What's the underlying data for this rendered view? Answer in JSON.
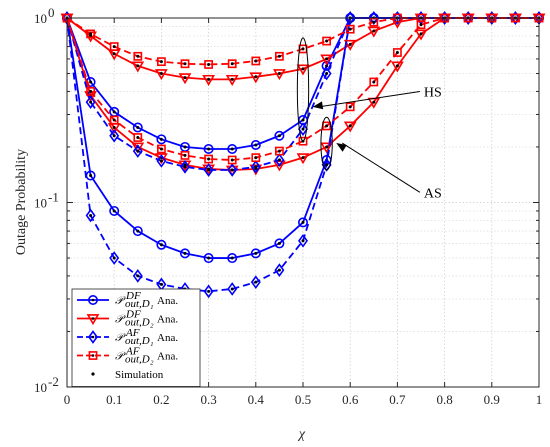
{
  "chart_data": {
    "type": "line",
    "xlabel": "χ",
    "ylabel": "Outage Probability",
    "yscale": "log",
    "xlim": [
      0,
      1
    ],
    "ylim": [
      0.01,
      1
    ],
    "grid": true,
    "legend_position": "bottom-left",
    "x_ticks": [
      0,
      0.1,
      0.2,
      0.3,
      0.4,
      0.5,
      0.6,
      0.7,
      0.8,
      0.9,
      1
    ],
    "x_tick_labels": [
      "0",
      "0.1",
      "0.2",
      "0.3",
      "0.4",
      "0.5",
      "0.6",
      "0.7",
      "0.8",
      "0.9",
      "1"
    ],
    "y_tick_labels": [
      {
        "value": 1,
        "base": "10",
        "exp": "0"
      },
      {
        "value": 0.1,
        "base": "10",
        "exp": "-1"
      },
      {
        "value": 0.01,
        "base": "10",
        "exp": "-2"
      }
    ],
    "x": [
      0,
      0.05,
      0.1,
      0.15,
      0.2,
      0.25,
      0.3,
      0.35,
      0.4,
      0.45,
      0.5,
      0.55,
      0.6,
      0.65,
      0.7,
      0.75,
      0.8,
      0.85,
      0.9,
      0.95,
      1
    ],
    "series": [
      {
        "id": "df-d1-hs",
        "legend": 0,
        "color": "#0000ff",
        "dash": "solid",
        "marker": "circle",
        "values": [
          1,
          0.45,
          0.31,
          0.255,
          0.22,
          0.2,
          0.195,
          0.195,
          0.205,
          0.23,
          0.28,
          0.55,
          1,
          1,
          1,
          1,
          1,
          1,
          1,
          1,
          1
        ]
      },
      {
        "id": "df-d1-as",
        "legend": 0,
        "color": "#0000ff",
        "dash": "solid",
        "marker": "circle",
        "values": [
          1,
          0.14,
          0.09,
          0.07,
          0.059,
          0.053,
          0.05,
          0.05,
          0.053,
          0.06,
          0.078,
          0.17,
          1,
          1,
          1,
          1,
          1,
          1,
          1,
          1,
          1
        ]
      },
      {
        "id": "df-d2-hs",
        "legend": 1,
        "color": "#ff0000",
        "dash": "solid",
        "marker": "triangle-down",
        "values": [
          1,
          0.8,
          0.64,
          0.55,
          0.5,
          0.475,
          0.465,
          0.465,
          0.48,
          0.5,
          0.53,
          0.6,
          0.72,
          0.85,
          0.95,
          1,
          1,
          1,
          1,
          1,
          1
        ]
      },
      {
        "id": "df-d2-as",
        "legend": 1,
        "color": "#ff0000",
        "dash": "solid",
        "marker": "triangle-down",
        "values": [
          1,
          0.38,
          0.255,
          0.2,
          0.175,
          0.16,
          0.152,
          0.15,
          0.152,
          0.16,
          0.175,
          0.2,
          0.26,
          0.35,
          0.55,
          0.82,
          1,
          1,
          1,
          1,
          1
        ]
      },
      {
        "id": "af-d1-hs",
        "legend": 2,
        "color": "#0000ff",
        "dash": "dashed",
        "marker": "diamond",
        "values": [
          1,
          0.35,
          0.23,
          0.19,
          0.168,
          0.156,
          0.15,
          0.15,
          0.156,
          0.17,
          0.25,
          0.5,
          1,
          1,
          1,
          1,
          1,
          1,
          1,
          1,
          1
        ]
      },
      {
        "id": "af-d1-as",
        "legend": 2,
        "color": "#0000ff",
        "dash": "dashed",
        "marker": "diamond",
        "values": [
          1,
          0.085,
          0.05,
          0.04,
          0.036,
          0.034,
          0.033,
          0.034,
          0.037,
          0.043,
          0.062,
          0.16,
          1,
          1,
          1,
          1,
          1,
          1,
          1,
          1,
          1
        ]
      },
      {
        "id": "af-d2-hs",
        "legend": 3,
        "color": "#ff0000",
        "dash": "dashed",
        "marker": "square",
        "values": [
          1,
          0.82,
          0.7,
          0.62,
          0.58,
          0.565,
          0.56,
          0.565,
          0.585,
          0.62,
          0.68,
          0.75,
          0.87,
          0.95,
          1,
          1,
          1,
          1,
          1,
          1,
          1
        ]
      },
      {
        "id": "af-d2-as",
        "legend": 3,
        "color": "#ff0000",
        "dash": "dashed",
        "marker": "square",
        "values": [
          1,
          0.4,
          0.28,
          0.225,
          0.195,
          0.18,
          0.172,
          0.17,
          0.175,
          0.19,
          0.215,
          0.26,
          0.33,
          0.45,
          0.65,
          0.92,
          1,
          1,
          1,
          1,
          1
        ]
      }
    ],
    "legend": [
      {
        "sym": "𝒫",
        "sup": "DF",
        "sub": "out,D₁",
        "suffix": "Ana.",
        "color": "#0000ff",
        "dash": "solid",
        "marker": "circle"
      },
      {
        "sym": "𝒫",
        "sup": "DF",
        "sub": "out,D₂",
        "suffix": "Ana.",
        "color": "#ff0000",
        "dash": "solid",
        "marker": "triangle-down"
      },
      {
        "sym": "𝒫",
        "sup": "AF",
        "sub": "out,D₁",
        "suffix": "Ana.",
        "color": "#0000ff",
        "dash": "dashed",
        "marker": "diamond"
      },
      {
        "sym": "𝒫",
        "sup": "AF",
        "sub": "out,D₂",
        "suffix": "Ana.",
        "color": "#ff0000",
        "dash": "dashed",
        "marker": "square"
      },
      {
        "sym": "",
        "sup": "",
        "sub": "",
        "suffix": "Simulation",
        "color": "#000000",
        "dash": "none",
        "marker": "dot"
      }
    ],
    "annotations": [
      {
        "label": "HS",
        "x": 0.5,
        "y": 0.33,
        "rx_data": 0.012,
        "y_top": 0.78,
        "y_bottom": 0.215,
        "text_at": {
          "x": 0.79,
          "y": 0.38
        }
      },
      {
        "label": "AS",
        "x": 0.55,
        "y": 0.21,
        "rx_data": 0.012,
        "y_top": 0.29,
        "y_bottom": 0.15,
        "text_at": {
          "x": 0.79,
          "y": 0.108
        }
      }
    ]
  }
}
